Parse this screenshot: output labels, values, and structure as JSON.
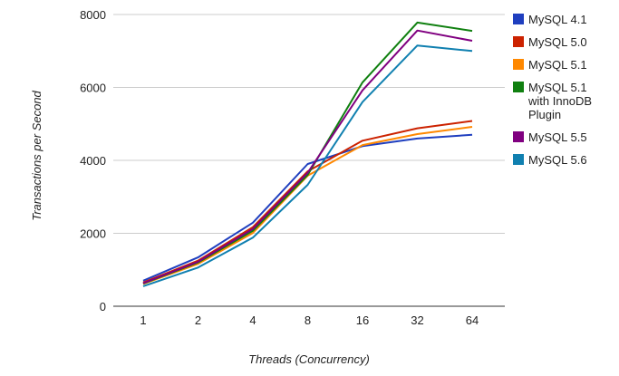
{
  "chart_data": {
    "type": "line",
    "xlabel": "Threads (Concurrency)",
    "ylabel": "Transactions per Second",
    "categories": [
      "1",
      "2",
      "4",
      "8",
      "16",
      "32",
      "64"
    ],
    "ylim": [
      0,
      8000
    ],
    "yticks": [
      0,
      2000,
      4000,
      6000,
      8000
    ],
    "grid": true,
    "legend_position": "right",
    "series": [
      {
        "name": "MySQL 4.1",
        "color": "#1f3fbf",
        "values": [
          700,
          1340,
          2290,
          3900,
          4390,
          4600,
          4700
        ]
      },
      {
        "name": "MySQL 5.0",
        "color": "#cc2200",
        "values": [
          650,
          1250,
          2170,
          3700,
          4540,
          4880,
          5080
        ]
      },
      {
        "name": "MySQL 5.1",
        "color": "#ff8800",
        "values": [
          610,
          1160,
          2010,
          3580,
          4420,
          4720,
          4920
        ]
      },
      {
        "name": "MySQL 5.1 with InnoDB Plugin",
        "legend_lines": [
          "MySQL 5.1",
          "with InnoDB",
          "Plugin"
        ],
        "color": "#108010",
        "values": [
          620,
          1200,
          2070,
          3600,
          6140,
          7780,
          7550
        ]
      },
      {
        "name": "MySQL 5.5",
        "color": "#800080",
        "values": [
          630,
          1220,
          2120,
          3660,
          5920,
          7560,
          7280
        ]
      },
      {
        "name": "MySQL 5.6",
        "color": "#1080b0",
        "values": [
          550,
          1060,
          1880,
          3330,
          5600,
          7150,
          7000
        ]
      }
    ]
  }
}
